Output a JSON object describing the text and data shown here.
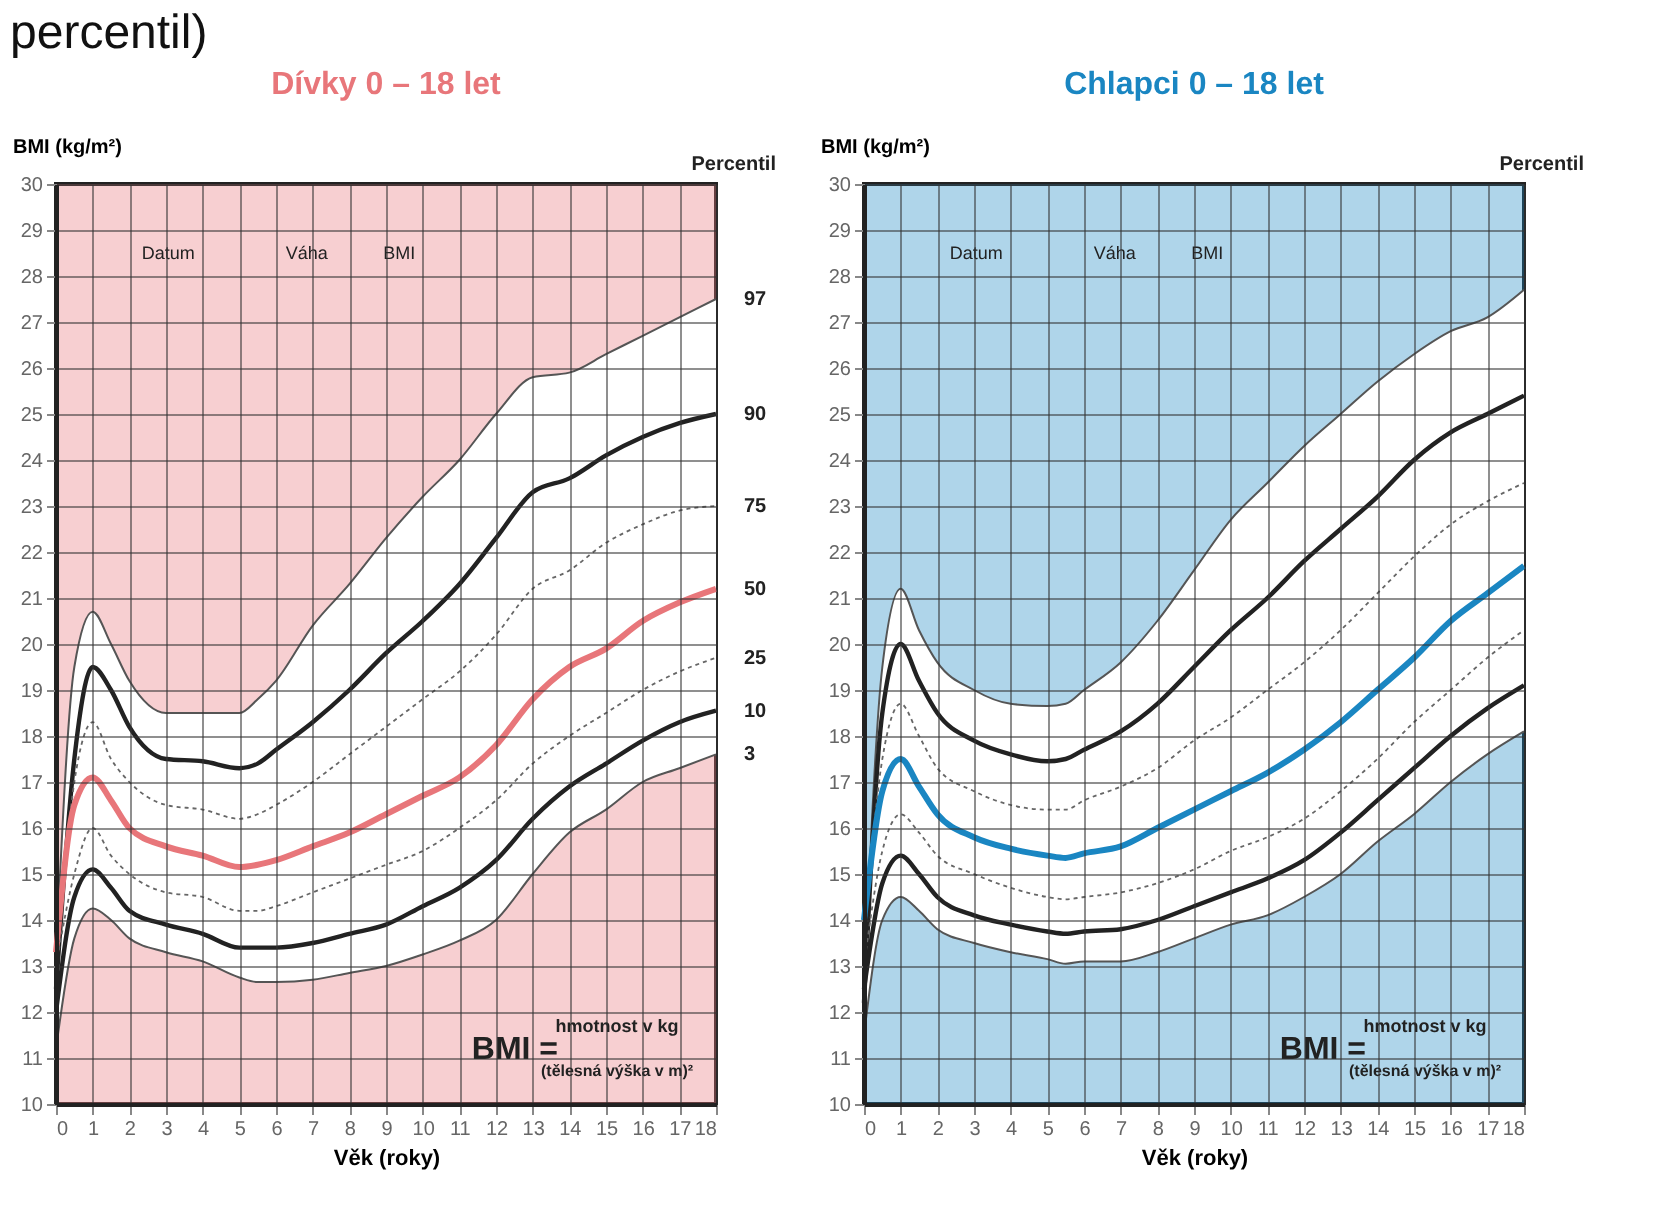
{
  "chart_data": [
    {
      "type": "line",
      "title": "Dívky 0 – 18 let",
      "xlabel": "Věk (roky)",
      "ylabel": "BMI (kg/m²)",
      "legend_title": "Percentil",
      "xlim": [
        0,
        18
      ],
      "ylim": [
        10,
        30
      ],
      "xticks": [
        0,
        1,
        2,
        3,
        4,
        5,
        6,
        7,
        8,
        9,
        10,
        11,
        12,
        13,
        14,
        15,
        16,
        17,
        18
      ],
      "yticks": [
        10,
        11,
        12,
        13,
        14,
        15,
        16,
        17,
        18,
        19,
        20,
        21,
        22,
        23,
        24,
        25,
        26,
        27,
        28,
        29,
        30
      ],
      "grid": true,
      "x": [
        0,
        0.5,
        1,
        1.5,
        2,
        3,
        4,
        5,
        5.5,
        6,
        7,
        8,
        9,
        10,
        11,
        12,
        13,
        14,
        15,
        16,
        17,
        18
      ],
      "series": [
        {
          "name": "97",
          "color": "#555555",
          "line_style": "solid",
          "values": [
            13.2,
            19.5,
            20.7,
            20.0,
            19.2,
            18.5,
            18.5,
            18.5,
            18.8,
            19.2,
            20.4,
            21.3,
            22.3,
            23.2,
            24.0,
            25.0,
            25.8,
            25.9,
            26.3,
            26.7,
            27.1,
            27.5
          ]
        },
        {
          "name": "90",
          "color": "#222222",
          "line_style": "solid",
          "values": [
            12.5,
            17.5,
            19.5,
            19.0,
            18.2,
            17.5,
            17.45,
            17.3,
            17.4,
            17.7,
            18.3,
            19.0,
            19.8,
            20.5,
            21.3,
            22.3,
            23.3,
            23.6,
            24.1,
            24.5,
            24.8,
            25.0
          ]
        },
        {
          "name": "75",
          "color": "#666666",
          "line_style": "dotted",
          "values": [
            12.8,
            17.0,
            18.3,
            17.5,
            17.0,
            16.5,
            16.4,
            16.2,
            16.3,
            16.5,
            17.0,
            17.6,
            18.2,
            18.8,
            19.4,
            20.2,
            21.2,
            21.6,
            22.2,
            22.6,
            22.9,
            23.0
          ]
        },
        {
          "name": "50",
          "color": "#e8767a",
          "line_style": "solid",
          "values": [
            13.3,
            16.5,
            17.1,
            16.6,
            16.0,
            15.6,
            15.4,
            15.15,
            15.2,
            15.3,
            15.6,
            15.9,
            16.3,
            16.7,
            17.1,
            17.8,
            18.8,
            19.5,
            19.9,
            20.5,
            20.9,
            21.2
          ],
          "lower": [
            11.2,
            13.6,
            14.25,
            14.0,
            13.6,
            13.3,
            13.1,
            12.75,
            12.65,
            12.65,
            12.7,
            12.85,
            13.0,
            13.25,
            13.55,
            14.0,
            15.0,
            15.9,
            16.4,
            17.0,
            17.3,
            17.6
          ],
          "upper": [
            13.2,
            19.5,
            20.7,
            20.0,
            19.2,
            18.5,
            18.5,
            18.5,
            18.8,
            19.2,
            20.4,
            21.3,
            22.3,
            23.2,
            24.0,
            25.0,
            25.8,
            25.9,
            26.3,
            26.7,
            27.1,
            27.5
          ]
        },
        {
          "name": "25",
          "color": "#666666",
          "line_style": "dotted",
          "values": [
            13.0,
            15.0,
            16.0,
            15.4,
            15.0,
            14.6,
            14.5,
            14.2,
            14.2,
            14.3,
            14.6,
            14.9,
            15.2,
            15.5,
            16.0,
            16.6,
            17.4,
            18.0,
            18.5,
            19.0,
            19.4,
            19.7
          ]
        },
        {
          "name": "10",
          "color": "#222222",
          "line_style": "solid",
          "values": [
            12.0,
            14.5,
            15.1,
            14.7,
            14.2,
            13.9,
            13.7,
            13.4,
            13.4,
            13.4,
            13.5,
            13.7,
            13.9,
            14.3,
            14.7,
            15.3,
            16.2,
            16.9,
            17.4,
            17.9,
            18.3,
            18.55
          ]
        },
        {
          "name": "3",
          "color": "#555555",
          "line_style": "solid",
          "values": [
            11.2,
            13.6,
            14.25,
            14.0,
            13.6,
            13.3,
            13.1,
            12.75,
            12.65,
            12.65,
            12.7,
            12.85,
            13.0,
            13.25,
            13.55,
            14.0,
            15.0,
            15.9,
            16.4,
            17.0,
            17.3,
            17.6
          ]
        }
      ],
      "annotations": [
        "Datum",
        "Váha",
        "BMI",
        "BMI =",
        "hmotnost v kg",
        "(tělesná výška v m)²",
        "percentil)"
      ]
    },
    {
      "type": "line",
      "title": "Chlapci 0 – 18 let",
      "xlabel": "Věk (roky)",
      "ylabel": "BMI (kg/m²)",
      "legend_title": "Percentil",
      "xlim": [
        0,
        18
      ],
      "ylim": [
        10,
        30
      ],
      "xticks": [
        0,
        1,
        2,
        3,
        4,
        5,
        6,
        7,
        8,
        9,
        10,
        11,
        12,
        13,
        14,
        15,
        16,
        17,
        18
      ],
      "yticks": [
        10,
        11,
        12,
        13,
        14,
        15,
        16,
        17,
        18,
        19,
        20,
        21,
        22,
        23,
        24,
        25,
        26,
        27,
        28,
        29,
        30
      ],
      "grid": true,
      "x": [
        0,
        0.5,
        1,
        1.5,
        2,
        3,
        4,
        5,
        5.5,
        6,
        7,
        8,
        9,
        10,
        11,
        12,
        13,
        14,
        15,
        16,
        17,
        18
      ],
      "series": [
        {
          "color": "#555555",
          "line_style": "solid",
          "values": [
            12.5,
            19.5,
            21.2,
            20.3,
            19.6,
            19.0,
            18.7,
            18.65,
            18.7,
            19.0,
            19.6,
            20.5,
            21.6,
            22.7,
            23.5,
            24.3,
            25.0,
            25.7,
            26.3,
            26.8,
            27.1,
            27.7
          ]
        },
        {
          "color": "#222222",
          "line_style": "solid",
          "values": [
            12.2,
            18.5,
            20.0,
            19.2,
            18.5,
            17.9,
            17.6,
            17.45,
            17.5,
            17.7,
            18.1,
            18.7,
            19.5,
            20.3,
            21.0,
            21.8,
            22.5,
            23.2,
            24.0,
            24.6,
            25.0,
            25.4
          ]
        },
        {
          "color": "#666666",
          "line_style": "dotted",
          "values": [
            13.5,
            17.5,
            18.7,
            18.0,
            17.3,
            16.8,
            16.5,
            16.4,
            16.4,
            16.6,
            16.9,
            17.3,
            17.9,
            18.4,
            19.0,
            19.6,
            20.3,
            21.1,
            21.9,
            22.6,
            23.1,
            23.5
          ]
        },
        {
          "color": "#1a86c2",
          "line_style": "solid",
          "values": [
            14.0,
            16.8,
            17.5,
            16.9,
            16.3,
            15.8,
            15.55,
            15.4,
            15.35,
            15.45,
            15.6,
            16.0,
            16.4,
            16.8,
            17.2,
            17.7,
            18.3,
            19.0,
            19.7,
            20.5,
            21.1,
            21.7
          ],
          "lower": [
            11.5,
            14.0,
            14.5,
            14.2,
            13.8,
            13.5,
            13.3,
            13.15,
            13.05,
            13.1,
            13.1,
            13.3,
            13.6,
            13.9,
            14.1,
            14.5,
            15.0,
            15.7,
            16.3,
            17.0,
            17.6,
            18.1
          ],
          "upper": [
            12.5,
            19.5,
            21.2,
            20.3,
            19.6,
            19.0,
            18.7,
            18.65,
            18.7,
            19.0,
            19.6,
            20.5,
            21.6,
            22.7,
            23.5,
            24.3,
            25.0,
            25.7,
            26.3,
            26.8,
            27.1,
            27.7
          ]
        },
        {
          "color": "#666666",
          "line_style": "dotted",
          "values": [
            13.0,
            15.5,
            16.3,
            15.9,
            15.4,
            15.0,
            14.7,
            14.5,
            14.45,
            14.5,
            14.6,
            14.8,
            15.1,
            15.5,
            15.8,
            16.2,
            16.8,
            17.5,
            18.3,
            19.0,
            19.7,
            20.3
          ]
        },
        {
          "color": "#222222",
          "line_style": "solid",
          "values": [
            12.5,
            14.8,
            15.4,
            15.0,
            14.5,
            14.1,
            13.9,
            13.75,
            13.7,
            13.75,
            13.8,
            14.0,
            14.3,
            14.6,
            14.9,
            15.3,
            15.9,
            16.6,
            17.3,
            18.0,
            18.6,
            19.1
          ]
        },
        {
          "color": "#555555",
          "line_style": "solid",
          "values": [
            11.5,
            14.0,
            14.5,
            14.2,
            13.8,
            13.5,
            13.3,
            13.15,
            13.05,
            13.1,
            13.1,
            13.3,
            13.6,
            13.9,
            14.1,
            14.5,
            15.0,
            15.7,
            16.3,
            17.0,
            17.6,
            18.1
          ]
        }
      ],
      "annotations": [
        "Datum",
        "Váha",
        "BMI",
        "BMI =",
        "hmotnost v kg",
        "(tělesná výška v m)²"
      ]
    }
  ]
}
